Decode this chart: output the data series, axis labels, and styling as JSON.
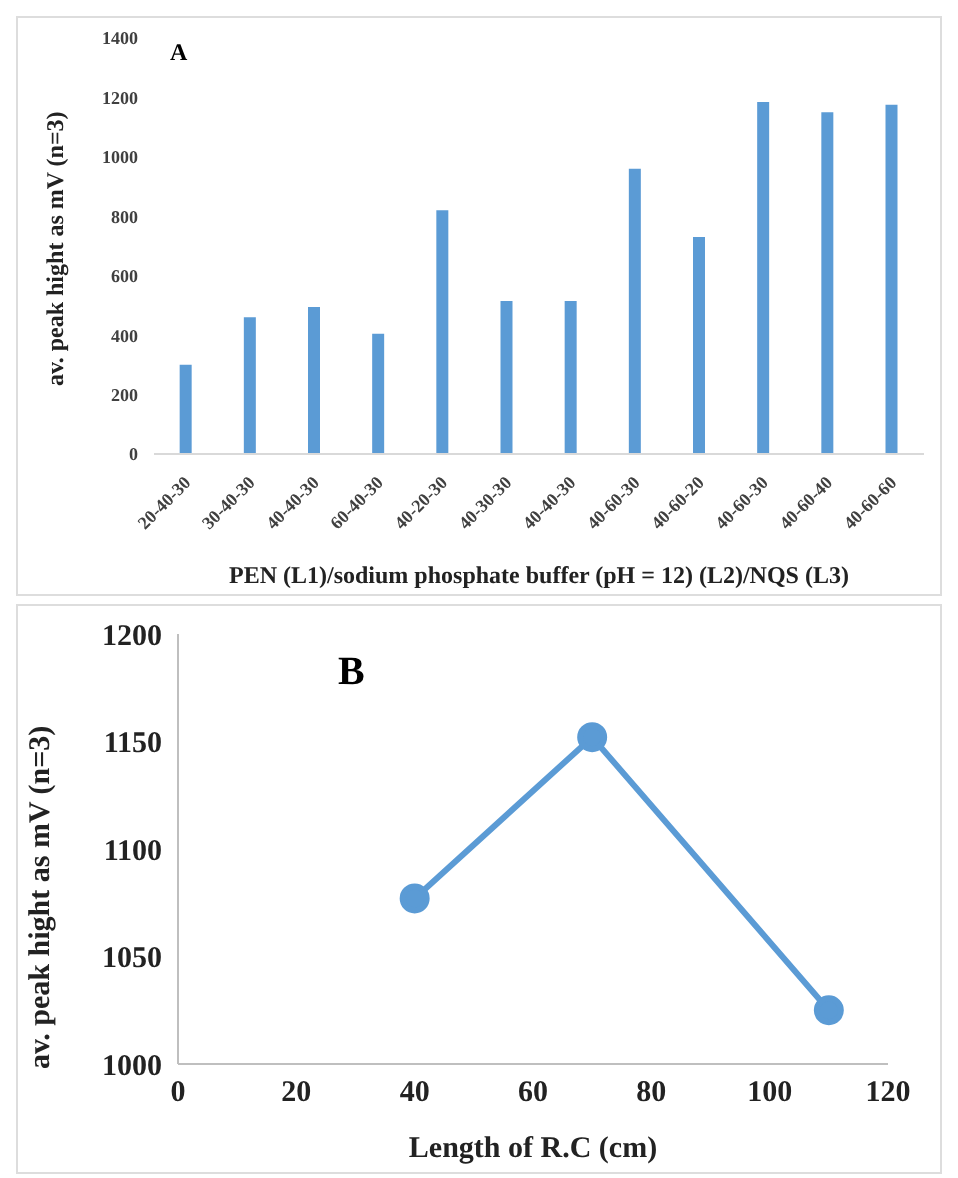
{
  "chart_data": [
    {
      "type": "bar",
      "title": "A",
      "xlabel": "PEN (L1)/sodium phosphate buffer (pH = 12) (L2)/NQS (L3)",
      "ylabel": "av. peak hight as mV (n=3)",
      "categories": [
        "20-40-30",
        "30-40-30",
        "40-40-30",
        "60-40-30",
        "40-20-30",
        "40-30-30",
        "40-40-30",
        "40-60-30",
        "40-60-20",
        "40-60-30",
        "40-60-40",
        "40-60-60"
      ],
      "values": [
        300,
        460,
        495,
        405,
        820,
        515,
        515,
        960,
        730,
        1185,
        1150,
        1175
      ],
      "color": "#5b9bd5",
      "ylim": [
        0,
        1400
      ],
      "yticks": [
        0,
        200,
        400,
        600,
        800,
        1000,
        1200,
        1400
      ],
      "grid": false,
      "legend": false
    },
    {
      "type": "line",
      "title": "B",
      "xlabel": "Length of R.C (cm)",
      "ylabel": "av. peak hight as mV (n=3)",
      "x": [
        40,
        70,
        110
      ],
      "values": [
        1077,
        1152,
        1025
      ],
      "color": "#5b9bd5",
      "xlim": [
        0,
        120
      ],
      "xticks": [
        0,
        20,
        40,
        60,
        80,
        100,
        120
      ],
      "ylim": [
        1000,
        1200
      ],
      "yticks": [
        1000,
        1050,
        1100,
        1150,
        1200
      ],
      "marker": "circle",
      "line_style": "solid",
      "grid": false,
      "legend": false
    }
  ]
}
